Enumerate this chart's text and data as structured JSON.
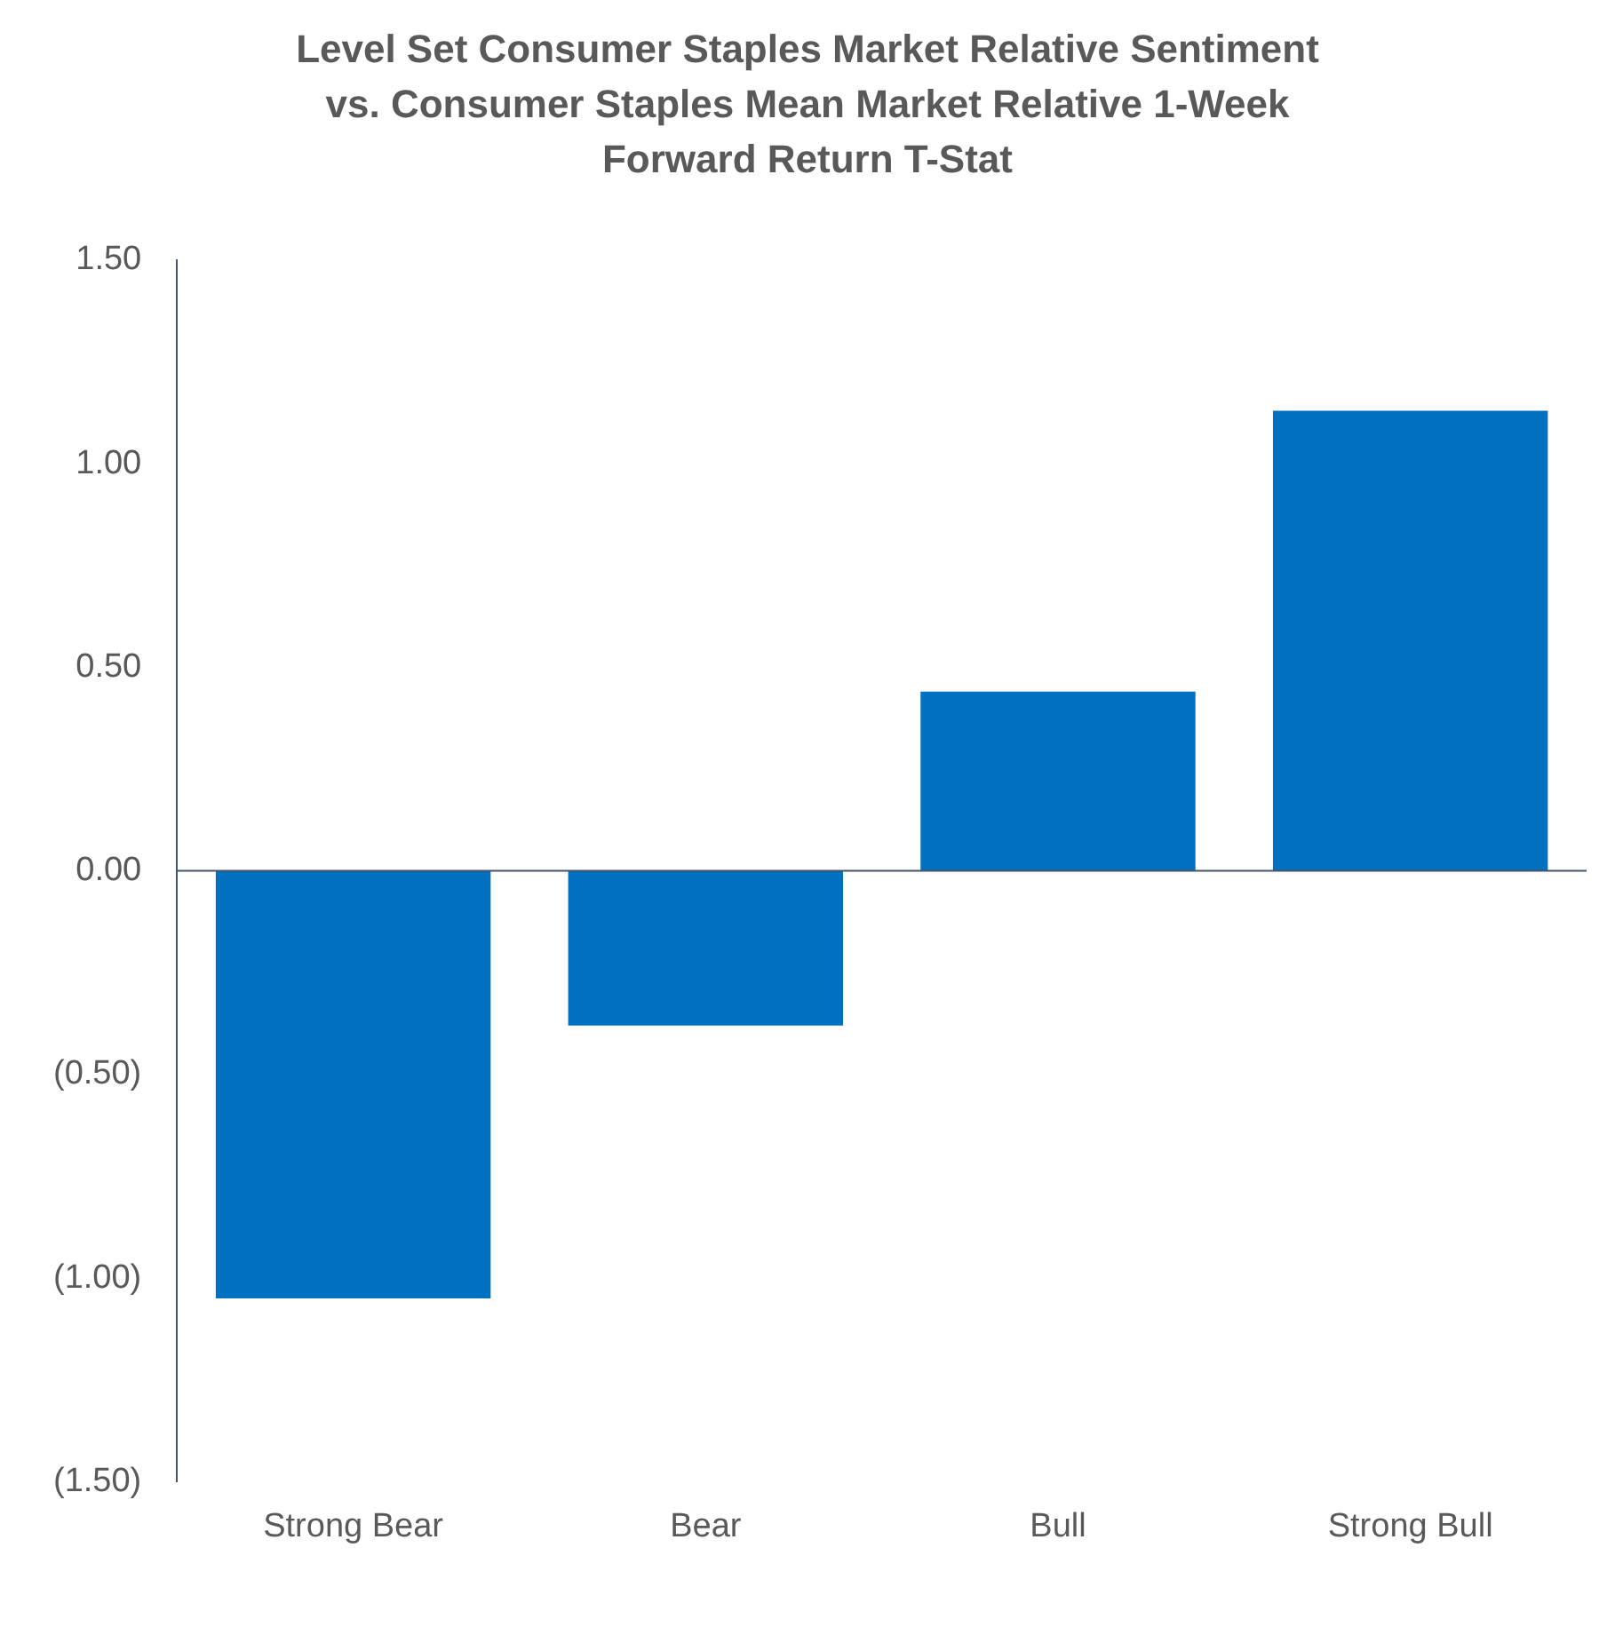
{
  "chart_data": {
    "type": "bar",
    "title": "Level Set Consumer Staples Market Relative Sentiment vs. Consumer Staples Mean Market Relative 1-Week Forward Return T-Stat",
    "categories": [
      "Strong Bear",
      "Bear",
      "Bull",
      "Strong Bull"
    ],
    "values": [
      -1.05,
      -0.38,
      0.44,
      1.13
    ],
    "color": "#0070c0",
    "ylim": [
      -1.5,
      1.5
    ],
    "yticks": [
      {
        "value": -1.5,
        "label": "(1.50)"
      },
      {
        "value": -1,
        "label": "(1.00)"
      },
      {
        "value": -0.5,
        "label": "(0.50)"
      },
      {
        "value": 0,
        "label": "0.00"
      },
      {
        "value": 0.5,
        "label": "0.50"
      },
      {
        "value": 1,
        "label": "1.00"
      },
      {
        "value": 1.5,
        "label": "1.50"
      }
    ],
    "grid": false,
    "legend": false,
    "ref_lines": [
      {
        "axis": "y",
        "value": 0,
        "color": "#44546a"
      }
    ]
  }
}
